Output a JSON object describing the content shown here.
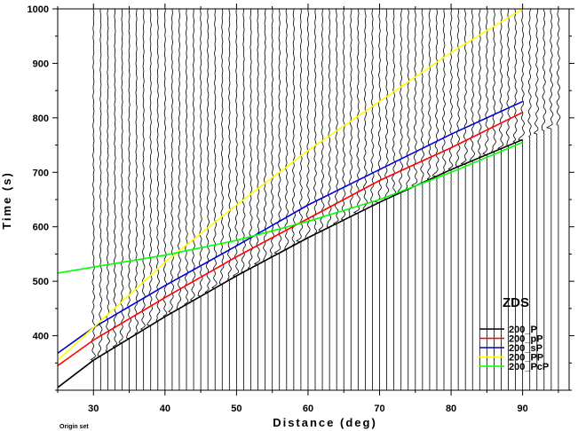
{
  "chart_data": {
    "type": "line",
    "xlabel": "Distance (deg)",
    "ylabel": "Time (s)",
    "xlim": [
      25,
      96.5
    ],
    "ylim": [
      300,
      1000
    ],
    "x_ticks": [
      30,
      40,
      50,
      60,
      70,
      80,
      90
    ],
    "y_ticks": [
      400,
      500,
      600,
      700,
      800,
      900,
      1000
    ],
    "legend_title": "ZDS",
    "legend_position": "bottom-right",
    "footnote": "Origin set",
    "series": [
      {
        "name": "200_P",
        "color": "#000000",
        "x": [
          25,
          30,
          40,
          50,
          60,
          70,
          80,
          90
        ],
        "y": [
          305,
          355,
          435,
          510,
          580,
          645,
          705,
          760
        ]
      },
      {
        "name": "200_pP",
        "color": "#ff0000",
        "x": [
          25,
          30,
          40,
          50,
          60,
          70,
          80,
          90
        ],
        "y": [
          345,
          392,
          470,
          545,
          615,
          685,
          745,
          810
        ]
      },
      {
        "name": "200_sP",
        "color": "#0000cc",
        "x": [
          25,
          30,
          40,
          50,
          60,
          70,
          80,
          90
        ],
        "y": [
          368,
          415,
          492,
          565,
          640,
          705,
          770,
          830
        ]
      },
      {
        "name": "200_PP",
        "color": "#ffff00",
        "x": [
          25,
          30,
          40,
          50,
          60,
          70,
          80,
          90
        ],
        "y": [
          355,
          415,
          535,
          640,
          740,
          830,
          920,
          1000
        ]
      },
      {
        "name": "200_PcP",
        "color": "#00ff00",
        "x": [
          25,
          40,
          50,
          60,
          70,
          80,
          90
        ],
        "y": [
          515,
          548,
          575,
          610,
          650,
          700,
          755
        ]
      }
    ],
    "traces": {
      "distances": [
        30,
        31,
        32,
        33,
        34,
        35,
        36,
        37,
        38,
        39,
        40,
        41,
        42,
        43,
        44,
        45,
        46,
        47,
        48,
        49,
        50,
        51,
        52,
        53,
        54,
        55,
        56,
        57,
        58,
        59,
        60,
        61,
        62,
        63,
        64,
        65,
        66,
        67,
        68,
        69,
        70,
        71,
        72,
        73,
        74,
        75,
        76,
        77,
        78,
        79,
        80,
        81,
        82,
        83,
        84,
        85,
        86,
        87,
        88,
        89,
        90,
        91,
        92,
        93,
        94,
        95
      ],
      "trace_start_time": 1000,
      "trace_color": "#000000"
    }
  }
}
